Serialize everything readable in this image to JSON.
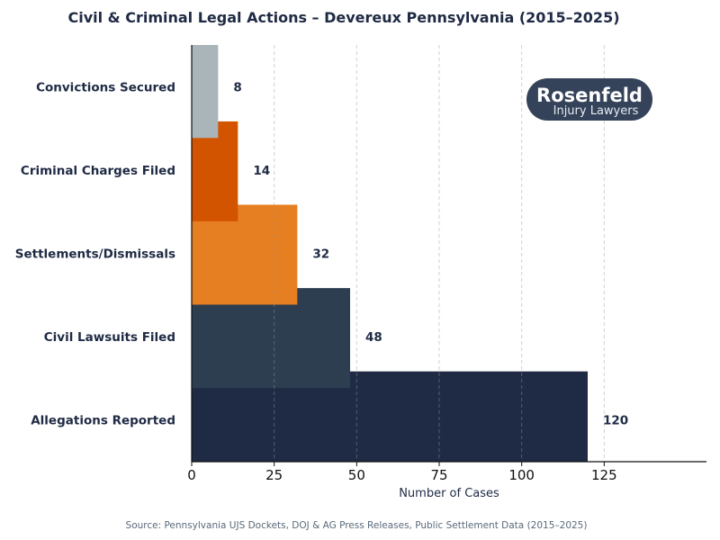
{
  "chart_data": {
    "type": "bar",
    "orientation": "horizontal",
    "title": "Civil & Criminal Legal Actions – Devereux Pennsylvania (2015–2025)",
    "xlabel": "Number of Cases",
    "ylabel": "",
    "xlim": [
      0,
      156
    ],
    "xticks": [
      0,
      25,
      50,
      75,
      100,
      125
    ],
    "grid": "x-dashed",
    "categories": [
      "Convictions Secured",
      "Criminal Charges Filed",
      "Settlements/Dismissals",
      "Civil Lawsuits Filed",
      "Allegations Reported"
    ],
    "values": [
      8,
      14,
      32,
      48,
      120
    ],
    "colors": [
      "#a9b5b8",
      "#d35400",
      "#e67e22",
      "#2c3e50",
      "#1f2a44"
    ],
    "source": "Source: Pennsylvania UJS Dockets, DOJ & AG Press Releases, Public Settlement Data (2015–2025)"
  },
  "logo": {
    "line1": "Rosenfeld",
    "line2": "Injury Lawyers",
    "color": "#34425a"
  }
}
